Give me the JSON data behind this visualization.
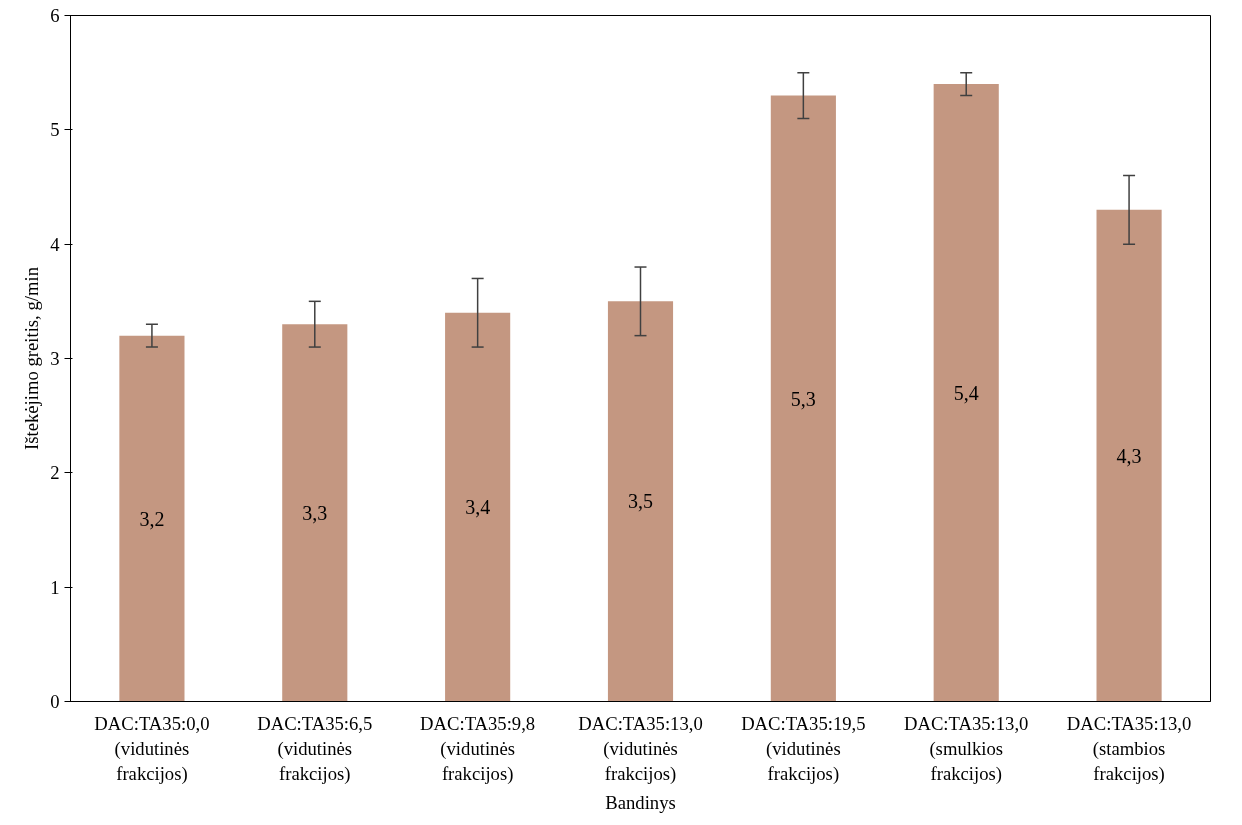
{
  "chart_data": {
    "type": "bar",
    "xlabel": "Bandinys",
    "ylabel": "Ištekėjimo greitis, g/min",
    "categories": [
      "DAC:TA35:0,0\n(vidutinės\nfrakcijos)",
      "DAC:TA35:6,5\n(vidutinės\nfrakcijos)",
      "DAC:TA35:9,8\n(vidutinės\nfrakcijos)",
      "DAC:TA35:13,0\n(vidutinės\nfrakcijos)",
      "DAC:TA35:19,5\n(vidutinės\nfrakcijos)",
      "DAC:TA35:13,0\n(smulkios\nfrakcijos)",
      "DAC:TA35:13,0\n(stambios\nfrakcijos)"
    ],
    "values": [
      3.2,
      3.3,
      3.4,
      3.5,
      5.3,
      5.4,
      4.3
    ],
    "errors": [
      0.1,
      0.2,
      0.3,
      0.3,
      0.2,
      0.1,
      0.3
    ],
    "value_labels": [
      "3,2",
      "3,3",
      "3,4",
      "3,5",
      "5,3",
      "5,4",
      "4,3"
    ],
    "color": "#c49781",
    "ylim": [
      0,
      6
    ],
    "yticks": [
      0,
      1,
      2,
      3,
      4,
      5,
      6
    ],
    "grid": false
  }
}
